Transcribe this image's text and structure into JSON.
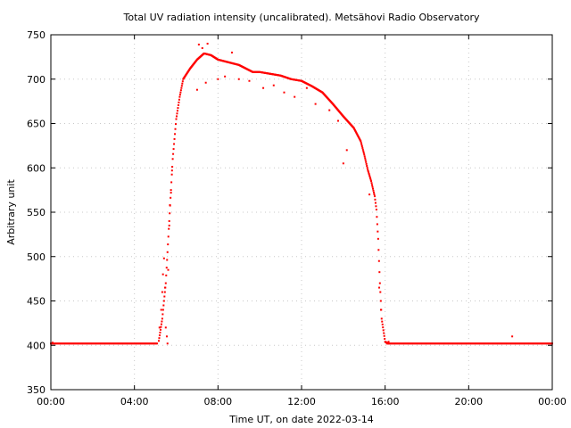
{
  "chart_data": {
    "type": "scatter",
    "title": "Total UV radiation intensity (uncalibrated). Metsähovi Radio Observatory",
    "xlabel": "Time UT, on date 2022-03-14",
    "ylabel": "Arbitrary unit",
    "xlim": [
      "00:00",
      "24:00"
    ],
    "ylim": [
      350,
      750
    ],
    "x_ticks": [
      "00:00",
      "04:00",
      "08:00",
      "12:00",
      "16:00",
      "20:00",
      "00:00"
    ],
    "y_ticks": [
      350,
      400,
      450,
      500,
      550,
      600,
      650,
      700,
      750
    ],
    "grid": true,
    "marker_color": "#ff0000",
    "series": [
      {
        "baseline_level": 402,
        "baseline_before_sunrise": [
          "00:00",
          "05:05"
        ],
        "baseline_after_sunset": [
          "16:05",
          "24:00"
        ],
        "main_curve": [
          [
            "05:10",
            405
          ],
          [
            "05:20",
            430
          ],
          [
            "05:30",
            470
          ],
          [
            "05:40",
            540
          ],
          [
            "05:50",
            610
          ],
          [
            "06:00",
            655
          ],
          [
            "06:10",
            680
          ],
          [
            "06:20",
            700
          ],
          [
            "06:40",
            712
          ],
          [
            "07:00",
            722
          ],
          [
            "07:20",
            729
          ],
          [
            "07:40",
            727
          ],
          [
            "08:00",
            722
          ],
          [
            "08:20",
            720
          ],
          [
            "08:40",
            718
          ],
          [
            "09:00",
            716
          ],
          [
            "09:20",
            712
          ],
          [
            "09:40",
            708
          ],
          [
            "10:00",
            708
          ],
          [
            "10:30",
            706
          ],
          [
            "11:00",
            704
          ],
          [
            "11:30",
            700
          ],
          [
            "12:00",
            698
          ],
          [
            "12:30",
            692
          ],
          [
            "13:00",
            685
          ],
          [
            "13:30",
            672
          ],
          [
            "14:00",
            658
          ],
          [
            "14:30",
            645
          ],
          [
            "14:50",
            630
          ],
          [
            "15:00",
            615
          ],
          [
            "15:10",
            598
          ],
          [
            "15:20",
            585
          ],
          [
            "15:30",
            568
          ],
          [
            "15:35",
            553
          ],
          [
            "15:40",
            520
          ],
          [
            "15:45",
            470
          ],
          [
            "15:50",
            430
          ],
          [
            "16:00",
            404
          ],
          [
            "16:10",
            402
          ]
        ],
        "scattered_points": [
          [
            "00:05",
            403
          ],
          [
            "05:12",
            420
          ],
          [
            "05:17",
            440
          ],
          [
            "05:20",
            460
          ],
          [
            "05:22",
            480
          ],
          [
            "05:25",
            498
          ],
          [
            "05:28",
            465
          ],
          [
            "05:30",
            420
          ],
          [
            "05:33",
            410
          ],
          [
            "05:35",
            402
          ],
          [
            "05:37",
            485
          ],
          [
            "05:40",
            535
          ],
          [
            "05:42",
            558
          ],
          [
            "05:45",
            572
          ],
          [
            "05:48",
            597
          ],
          [
            "07:00",
            688
          ],
          [
            "07:05",
            739
          ],
          [
            "07:15",
            735
          ],
          [
            "07:25",
            696
          ],
          [
            "07:30",
            740
          ],
          [
            "08:00",
            700
          ],
          [
            "08:20",
            703
          ],
          [
            "08:40",
            730
          ],
          [
            "09:00",
            700
          ],
          [
            "09:30",
            698
          ],
          [
            "10:10",
            690
          ],
          [
            "10:40",
            693
          ],
          [
            "11:10",
            685
          ],
          [
            "11:40",
            680
          ],
          [
            "12:15",
            690
          ],
          [
            "12:40",
            672
          ],
          [
            "13:20",
            665
          ],
          [
            "13:45",
            653
          ],
          [
            "14:00",
            605
          ],
          [
            "14:10",
            620
          ],
          [
            "15:15",
            570
          ],
          [
            "15:43",
            465
          ],
          [
            "15:48",
            440
          ],
          [
            "16:10",
            404
          ],
          [
            "22:05",
            410
          ]
        ]
      }
    ]
  }
}
